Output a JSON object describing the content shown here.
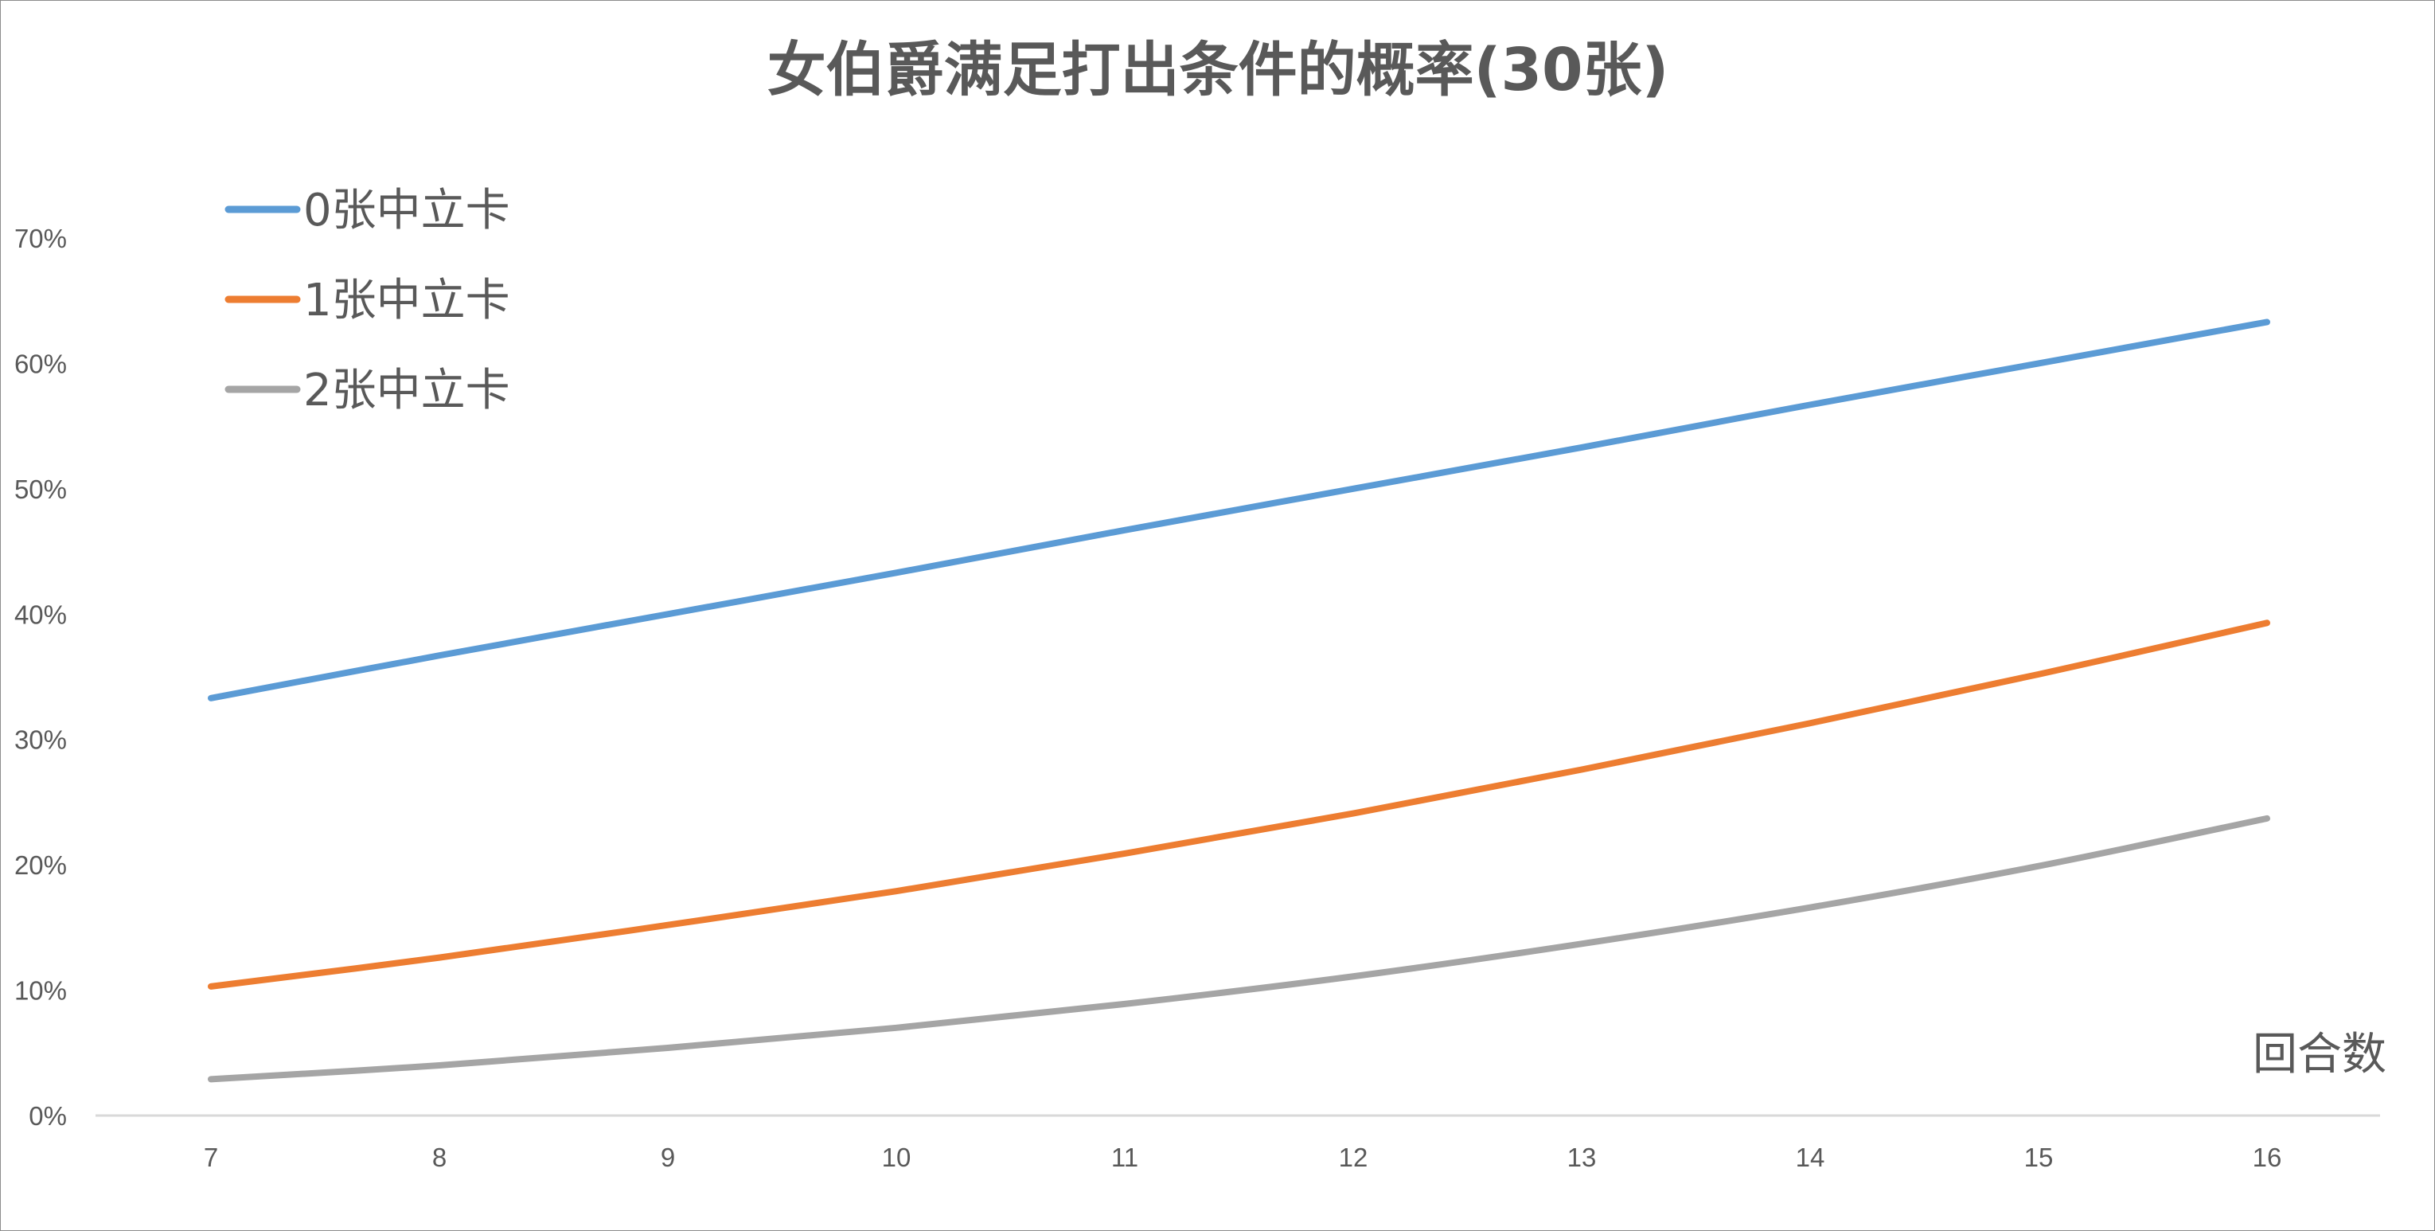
{
  "chart_data": {
    "type": "line",
    "title": "女伯爵满足打出条件的概率(30张)",
    "xlabel": "回合数",
    "ylabel": "",
    "categories": [
      "7",
      "8",
      "9",
      "10",
      "11",
      "12",
      "13",
      "14",
      "15",
      "16"
    ],
    "ylim": [
      0,
      0.7
    ],
    "y_ticks": [
      "0%",
      "10%",
      "20%",
      "30%",
      "40%",
      "50%",
      "60%",
      "70%"
    ],
    "grid": false,
    "legend_position": "top-left",
    "series": [
      {
        "name": "0张中立卡",
        "color": "#5B9BD5",
        "values": [
          0.333,
          0.367,
          0.4,
          0.433,
          0.467,
          0.5,
          0.533,
          0.567,
          0.6,
          0.633
        ]
      },
      {
        "name": "1张中立卡",
        "color": "#ED7D31",
        "values": [
          0.103,
          0.126,
          0.152,
          0.179,
          0.209,
          0.241,
          0.276,
          0.313,
          0.352,
          0.393
        ]
      },
      {
        "name": "2张中立卡",
        "color": "#A5A5A5",
        "values": [
          0.029,
          0.04,
          0.054,
          0.07,
          0.089,
          0.111,
          0.137,
          0.166,
          0.199,
          0.237
        ]
      }
    ]
  }
}
